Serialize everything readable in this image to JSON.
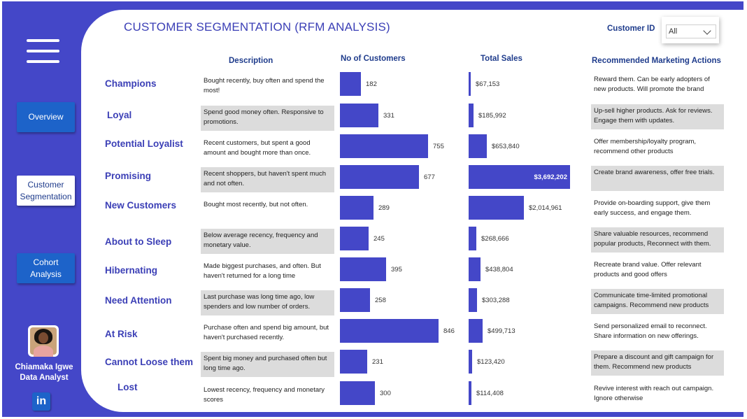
{
  "title": "CUSTOMER SEGMENTATION (RFM ANALYSIS)",
  "filter": {
    "label": "Customer ID",
    "value": "All"
  },
  "nav": [
    {
      "label": "Overview",
      "style": "blue"
    },
    {
      "label": "Customer\nSegmentation",
      "style": "white"
    },
    {
      "label": "Cohort\nAnalysis",
      "style": "blue"
    }
  ],
  "profile": {
    "name": "Chiamaka Igwe",
    "role": "Data Analyst",
    "linkedin": "in"
  },
  "columns": {
    "description": "Description",
    "customers": "No of Customers",
    "sales": "Total Sales",
    "actions": "Recommended Marketing Actions"
  },
  "colors": {
    "primary": "#4447c8",
    "nav_button": "#1d63c9",
    "shade": "#dcdcdc"
  },
  "segments": [
    {
      "name": "Champions",
      "description": "Bought recently, buy often and spend the most!",
      "customers": 182,
      "customers_label": "182",
      "sales": 67153,
      "sales_label": "$67,153",
      "action": "Reward them. Can be early adopters of new products. Will promote the brand"
    },
    {
      "name": "Loyal",
      "description": "Spend good money often. Responsive to promotions.",
      "customers": 331,
      "customers_label": "331",
      "sales": 185992,
      "sales_label": "$185,992",
      "action": "Up-sell higher products. Ask for reviews. Engage them with updates."
    },
    {
      "name": "Potential Loyalist",
      "description": "Recent customers, but spent a good amount and bought more than once.",
      "customers": 755,
      "customers_label": "755",
      "sales": 653840,
      "sales_label": "$653,840",
      "action": "Offer membership/loyalty program, recommend other products"
    },
    {
      "name": "Promising",
      "description": "Recent shoppers, but haven't spent much and not often.",
      "customers": 677,
      "customers_label": "677",
      "sales": 3692202,
      "sales_label": "$3,692,202",
      "action": "Create brand awareness, offer free trials."
    },
    {
      "name": "New Customers",
      "description": "Bought most recently, but not often.",
      "customers": 289,
      "customers_label": "289",
      "sales": 2014961,
      "sales_label": "$2,014,961",
      "action": "Provide on-boarding support, give them early success, and engage them."
    },
    {
      "name": "About to Sleep",
      "description": "Below average recency, frequency and monetary value.",
      "customers": 245,
      "customers_label": "245",
      "sales": 268666,
      "sales_label": "$268,666",
      "action": "Share valuable resources, recommend popular products, Reconnect with them."
    },
    {
      "name": "Hibernating",
      "description": "Made biggest purchases, and often. But haven't returned for a long time",
      "customers": 395,
      "customers_label": "395",
      "sales": 438804,
      "sales_label": "$438,804",
      "action": "Recreate brand value. Offer relevant products and good offers"
    },
    {
      "name": "Need Attention",
      "description": "Last purchase was long time ago, low spenders and low number of orders.",
      "customers": 258,
      "customers_label": "258",
      "sales": 303288,
      "sales_label": "$303,288",
      "action": "Communicate time-limited promotional campaigns. Recommend  new products"
    },
    {
      "name": "At Risk",
      "description": "Purchase often and spend big amount, but haven't purchased recently.",
      "customers": 846,
      "customers_label": "846",
      "sales": 499713,
      "sales_label": "$499,713",
      "action": "Send personalized email to reconnect. Share information on new offerings."
    },
    {
      "name": "Cannot Loose them",
      "description": "Spent big money and purchased often but long time ago.",
      "customers": 231,
      "customers_label": "231",
      "sales": 123420,
      "sales_label": "$123,420",
      "action": "Prepare a discount and gift campaign for them. Recommend new products"
    },
    {
      "name": "Lost",
      "description": "Lowest recency, frequency and monetary scores",
      "customers": 300,
      "customers_label": "300",
      "sales": 114408,
      "sales_label": "$114,408",
      "action": "Revive interest with reach out campaign. Ignore otherwise"
    }
  ]
}
